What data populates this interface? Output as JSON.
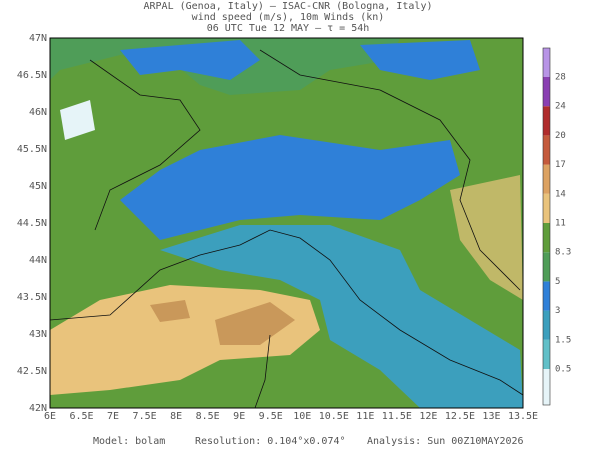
{
  "header": {
    "lines": [
      "ARPAL (Genoa, Italy)  —  ISAC-CNR (Bologna, Italy)",
      "wind speed (m/s), 10m Winds (kn)",
      "06 UTC Tue 12 MAY  —  τ = 54h"
    ]
  },
  "map": {
    "lon_labels": [
      "6E",
      "6.5E",
      "7E",
      "7.5E",
      "8E",
      "8.5E",
      "9E",
      "9.5E",
      "10E",
      "10.5E",
      "11E",
      "11.5E",
      "12E",
      "12.5E",
      "13E",
      "13.5E"
    ],
    "lat_labels": [
      "42N",
      "42.5N",
      "43N",
      "43.5N",
      "44N",
      "44.5N",
      "45N",
      "45.5N",
      "46N",
      "46.5N",
      "47N"
    ]
  },
  "colorbar": {
    "levels": [
      0.5,
      1.5,
      3,
      5,
      8.3,
      11,
      14,
      17,
      20,
      24,
      28
    ],
    "colors": [
      "#e6f4f8",
      "#62c0c8",
      "#3c9fbd",
      "#2f80d8",
      "#4f9d58",
      "#5f9d3b",
      "#e9c37c",
      "#dca262",
      "#c45a3c",
      "#b02c2c",
      "#8a3fb2",
      "#b894e6"
    ]
  },
  "footer": {
    "model": "Model: bolam",
    "resolution": "Resolution: 0.104°x0.074°",
    "analysis": "Analysis: Sun 00Z10MAY2026"
  }
}
